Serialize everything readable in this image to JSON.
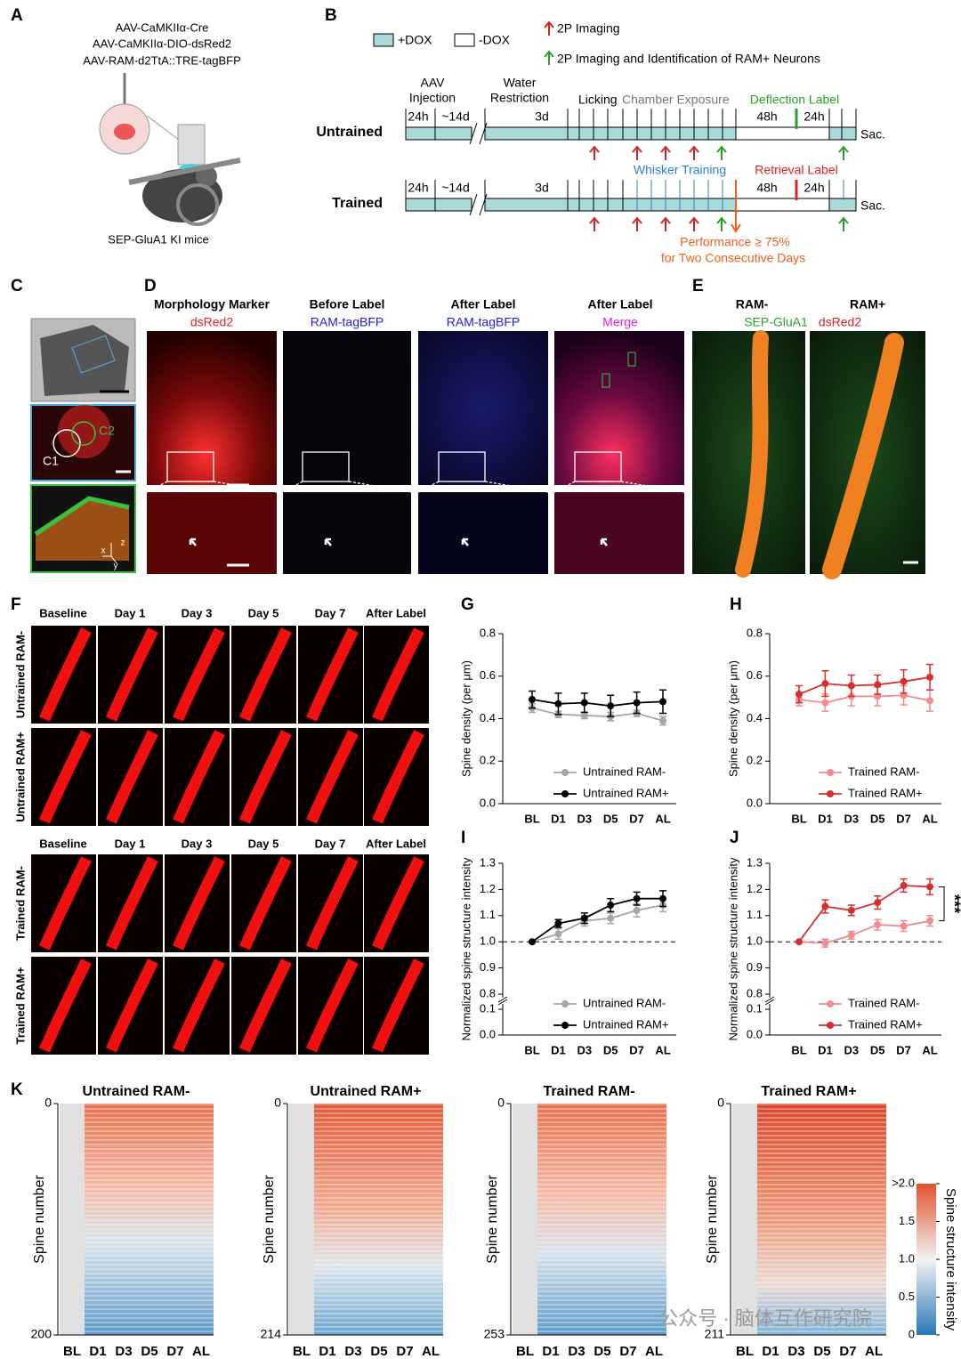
{
  "panel_labels": [
    "A",
    "B",
    "C",
    "D",
    "E",
    "F",
    "G",
    "H",
    "I",
    "J",
    "K"
  ],
  "panel_a": {
    "viruses": [
      "AAV-CaMKIIα-Cre",
      "AAV-CaMKIIα-DIO-dsRed2",
      "AAV-RAM-d2TtA::TRE-tagBFP"
    ],
    "caption": "SEP-GluA1 KI mice"
  },
  "panel_b": {
    "legend": {
      "dox_on": "+DOX",
      "dox_off": "-DOX",
      "arrow_red": "2P Imaging",
      "arrow_green": "2P Imaging  and Identification of RAM+ Neurons"
    },
    "phases": {
      "injection": [
        "AAV",
        "Injection"
      ],
      "water": [
        "Water",
        "Restriction"
      ],
      "licking": "Licking",
      "chamber": "Chamber Exposure"
    },
    "untrained": {
      "label": "Untrained",
      "durations": [
        "24h",
        "~14d",
        "3d",
        "48h",
        "24h"
      ],
      "event": "Deflection Label",
      "end": "Sac."
    },
    "trained": {
      "label": "Trained",
      "durations": [
        "24h",
        "~14d",
        "3d",
        "48h",
        "24h"
      ],
      "training": "Whisker Training",
      "event": "Retrieval Label",
      "end": "Sac.",
      "criterion": [
        "Performance ≥ 75%",
        "for Two Consecutive Days"
      ]
    }
  },
  "panel_c": {
    "regions": [
      "C1",
      "C2"
    ],
    "axes": [
      "x",
      "y",
      "z"
    ]
  },
  "panel_d": {
    "columns": [
      {
        "title": "Morphology Marker",
        "subtitle": "dsRed2"
      },
      {
        "title": "Before Label",
        "subtitle": "RAM-tagBFP"
      },
      {
        "title": "After Label",
        "subtitle": "RAM-tagBFP"
      },
      {
        "title": "After Label",
        "subtitle": "Merge"
      }
    ]
  },
  "panel_e": {
    "columns": [
      {
        "title": "RAM-",
        "subtitle": "SEP-GluA1"
      },
      {
        "title": "RAM+",
        "subtitle": "dsRed2"
      }
    ]
  },
  "panel_f": {
    "columns": [
      "Baseline",
      "Day 1",
      "Day 3",
      "Day 5",
      "Day 7",
      "After Label"
    ],
    "rows": [
      "Untrained RAM-",
      "Untrained RAM+",
      "Trained RAM-",
      "Trained RAM+"
    ]
  },
  "chart_data": [
    {
      "type": "line",
      "categories": [
        "BL",
        "D1",
        "D3",
        "D5",
        "D7",
        "AL"
      ],
      "y_label": "Spine density (per μm)",
      "ylim": [
        0,
        0.8
      ],
      "yticks": [
        {
          "value": 0,
          "label": "0.0"
        },
        0.2,
        0.4,
        0.6,
        0.8
      ],
      "legend": "lower right",
      "series": [
        {
          "name": "Untrained RAM-",
          "color": "#a6a6a6",
          "values": [
            0.45,
            0.42,
            0.415,
            0.41,
            0.425,
            0.39
          ],
          "errors": [
            0.02,
            0.015,
            0.015,
            0.02,
            0.015,
            0.02
          ]
        },
        {
          "name": "Untrained RAM+",
          "color": "#000000",
          "values": [
            0.49,
            0.47,
            0.475,
            0.46,
            0.475,
            0.48
          ],
          "errors": [
            0.04,
            0.05,
            0.045,
            0.05,
            0.05,
            0.055
          ]
        }
      ]
    },
    {
      "type": "line",
      "categories": [
        "BL",
        "D1",
        "D3",
        "D5",
        "D7",
        "AL"
      ],
      "y_label": "Spine density (per μm)",
      "ylim": [
        0,
        0.8
      ],
      "yticks": [
        {
          "value": 0,
          "label": "0.0"
        },
        0.2,
        0.4,
        0.6,
        0.8
      ],
      "legend": "lower right",
      "series": [
        {
          "name": "Trained RAM-",
          "color": "#f28b8b",
          "values": [
            0.49,
            0.475,
            0.505,
            0.505,
            0.51,
            0.485
          ],
          "errors": [
            0.03,
            0.04,
            0.045,
            0.045,
            0.045,
            0.05
          ]
        },
        {
          "name": "Trained RAM+",
          "color": "#d62f2f",
          "values": [
            0.515,
            0.565,
            0.555,
            0.56,
            0.575,
            0.595
          ],
          "errors": [
            0.04,
            0.06,
            0.05,
            0.045,
            0.055,
            0.06
          ]
        }
      ]
    },
    {
      "type": "line",
      "categories": [
        "BL",
        "D1",
        "D3",
        "D5",
        "D7",
        "AL"
      ],
      "y_label": "Normalized spine structure intensity",
      "ylim": [
        0.8,
        1.3
      ],
      "yticks": [
        0.8,
        0.9,
        {
          "value": 1,
          "label": "1.0"
        },
        1.1,
        1.2,
        1.3
      ],
      "ylim_break": [
        0,
        0.1
      ],
      "yticks_break": [
        {
          "value": 0,
          "label": "0.0"
        },
        0.1
      ],
      "reference_line": 1,
      "legend": "lower right",
      "series": [
        {
          "name": "Untrained RAM-",
          "color": "#a6a6a6",
          "values": [
            1.0,
            1.03,
            1.08,
            1.09,
            1.12,
            1.14
          ],
          "errors": [
            0,
            0.02,
            0.02,
            0.02,
            0.025,
            0.025
          ]
        },
        {
          "name": "Untrained RAM+",
          "color": "#000000",
          "values": [
            1.0,
            1.07,
            1.09,
            1.14,
            1.165,
            1.165
          ],
          "errors": [
            0,
            0.015,
            0.02,
            0.025,
            0.025,
            0.03
          ]
        }
      ]
    },
    {
      "type": "line",
      "categories": [
        "BL",
        "D1",
        "D3",
        "D5",
        "D7",
        "AL"
      ],
      "y_label": "Normalized spine structure intensity",
      "ylim": [
        0.8,
        1.3
      ],
      "yticks": [
        0.8,
        0.9,
        {
          "value": 1,
          "label": "1.0"
        },
        1.1,
        1.2,
        1.3
      ],
      "ylim_break": [
        0,
        0.1
      ],
      "yticks_break": [
        {
          "value": 0,
          "label": "0.0"
        },
        0.1
      ],
      "reference_line": 1,
      "legend": "lower right",
      "annotation": "***",
      "series": [
        {
          "name": "Trained RAM-",
          "color": "#f28b8b",
          "values": [
            1.0,
            0.995,
            1.025,
            1.065,
            1.06,
            1.08
          ],
          "errors": [
            0,
            0.015,
            0.015,
            0.02,
            0.02,
            0.02
          ]
        },
        {
          "name": "Trained RAM+",
          "color": "#d62f2f",
          "values": [
            1.0,
            1.135,
            1.12,
            1.15,
            1.215,
            1.21
          ],
          "errors": [
            0,
            0.025,
            0.02,
            0.025,
            0.025,
            0.03
          ]
        }
      ]
    }
  ],
  "panel_k": {
    "y_label": "Spine number",
    "categories": [
      "BL",
      "D1",
      "D3",
      "D5",
      "D7",
      "AL"
    ],
    "heatmaps": [
      {
        "title": "Untrained RAM-",
        "ylim": [
          0,
          200
        ],
        "yticks": [
          0,
          200
        ]
      },
      {
        "title": "Untrained RAM+",
        "ylim": [
          0,
          214
        ],
        "yticks": [
          0,
          214
        ]
      },
      {
        "title": "Trained RAM-",
        "ylim": [
          0,
          253
        ],
        "yticks": [
          0,
          253
        ]
      },
      {
        "title": "Trained RAM+",
        "ylim": [
          0,
          211
        ],
        "yticks": [
          0,
          211
        ]
      }
    ],
    "colorbar": {
      "label": "Spine structure intensity",
      "lim": [
        0,
        2
      ],
      "ticks": [
        0,
        0.5,
        {
          "value": 1,
          "label": "1.0"
        },
        1.5,
        {
          "value": 2,
          "label": ">2.0"
        }
      ]
    }
  },
  "watermark": "公众号 · 脑体互作研究院"
}
